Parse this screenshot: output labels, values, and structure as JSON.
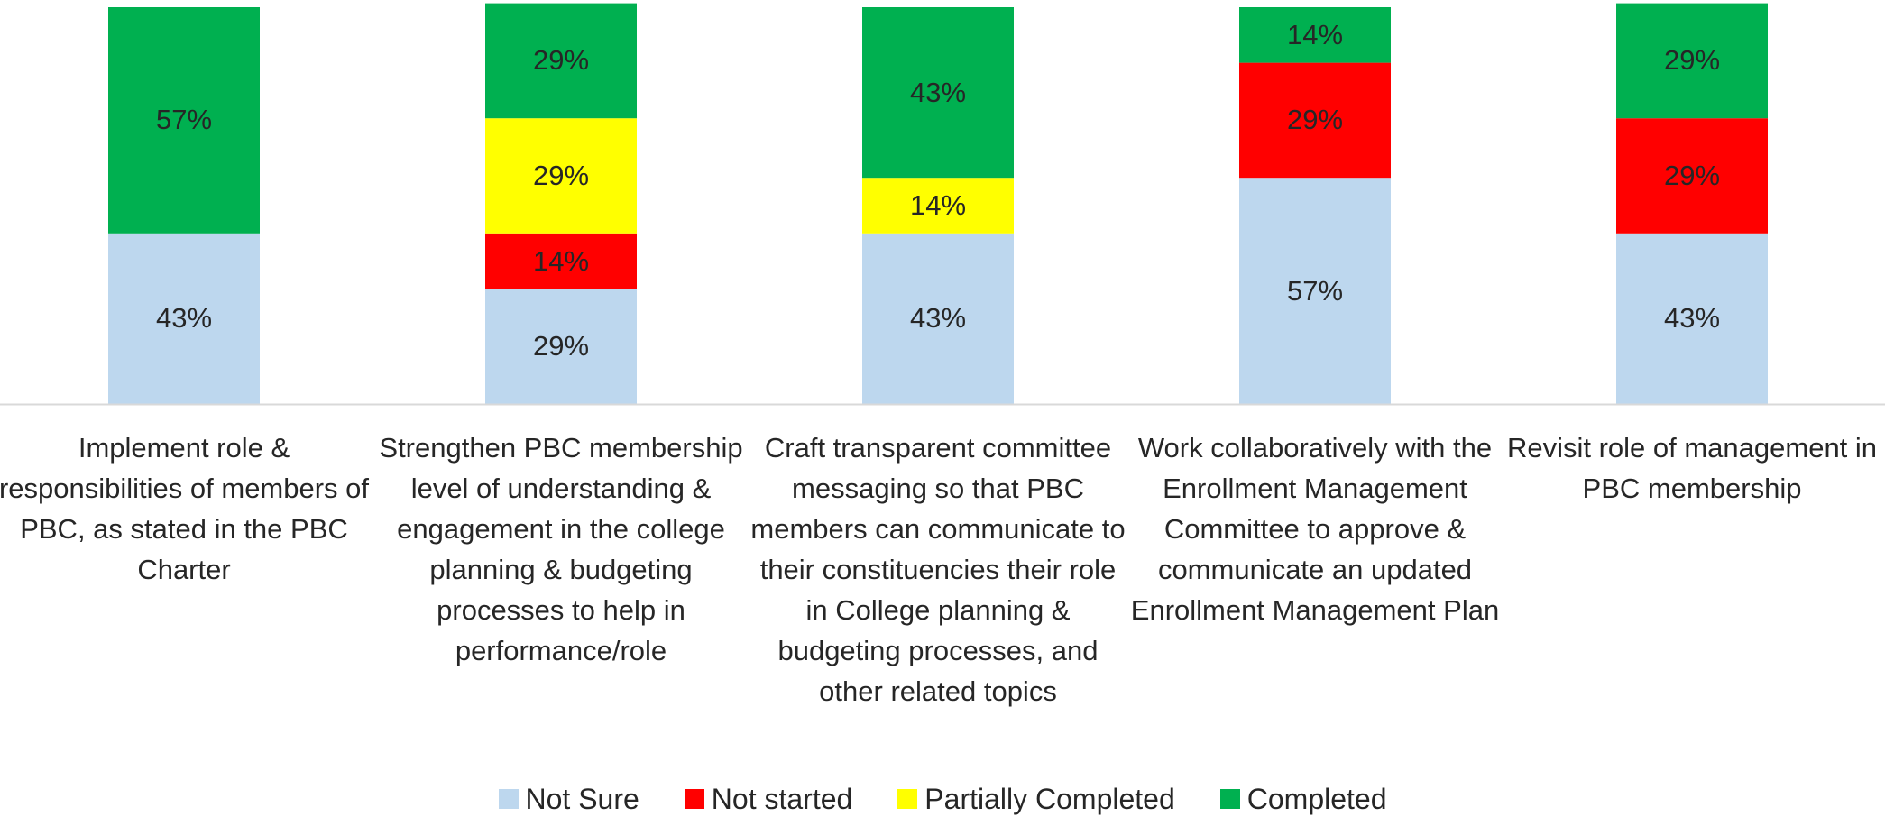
{
  "chart_data": {
    "type": "stacked-bar",
    "categories": [
      "Implement role & responsibilities of members of PBC, as stated in the PBC Charter",
      "Strengthen PBC membership level of understanding & engagement in the college planning & budgeting processes to help in performance/role",
      "Craft transparent committee messaging so that PBC members can communicate to their constituencies their role in College planning & budgeting processes, and other related topics",
      "Work collaboratively with the Enrollment Management Committee to approve & communicate an updated Enrollment Management Plan",
      "Revisit role of management in PBC membership"
    ],
    "series": [
      {
        "name": "Not Sure",
        "color": "#bdd7ee",
        "values": [
          43,
          29,
          43,
          57,
          43
        ],
        "value_labels": [
          "43%",
          "29%",
          "43%",
          "57%",
          "43%"
        ]
      },
      {
        "name": "Not started",
        "color": "#ff0000",
        "values": [
          0,
          14,
          0,
          29,
          29
        ],
        "value_labels": [
          null,
          "14%",
          null,
          "29%",
          "29%"
        ]
      },
      {
        "name": "Partially Completed",
        "color": "#ffff00",
        "values": [
          0,
          29,
          14,
          0,
          0
        ],
        "value_labels": [
          null,
          "29%",
          "14%",
          null,
          null
        ]
      },
      {
        "name": "Completed",
        "color": "#00b050",
        "values": [
          57,
          29,
          43,
          14,
          29
        ],
        "value_labels": [
          "57%",
          "29%",
          "43%",
          "14%",
          "29%"
        ]
      }
    ],
    "legend": "bottom"
  }
}
